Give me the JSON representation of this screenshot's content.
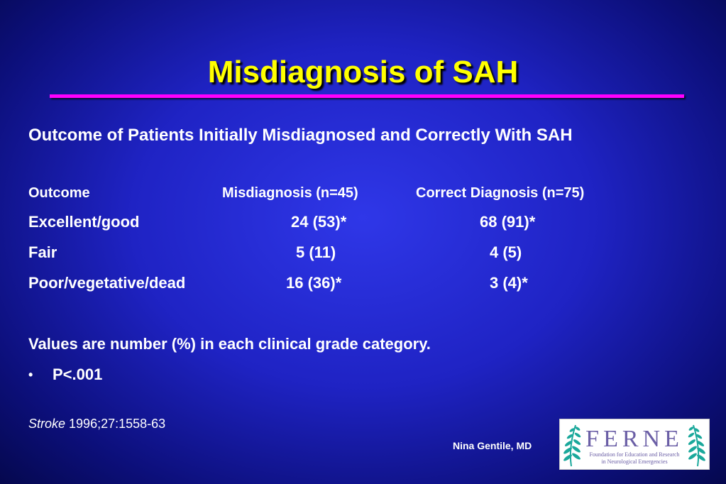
{
  "slide": {
    "title": "Misdiagnosis of SAH",
    "subtitle": "Outcome of Patients Initially Misdiagnosed and Correctly With SAH",
    "table": {
      "headers": [
        "Outcome",
        "Misdiagnosis (n=45)",
        "Correct Diagnosis (n=75)"
      ],
      "rows": [
        {
          "outcome": "Excellent/good",
          "misdiagnosis": "24 (53)*",
          "correct": "68 (91)*"
        },
        {
          "outcome": "Fair",
          "misdiagnosis": "5 (11)",
          "correct": "4 (5)"
        },
        {
          "outcome": "Poor/vegetative/dead",
          "misdiagnosis": "16 (36)*",
          "correct": "3 (4)*"
        }
      ]
    },
    "note": "Values are number (%) in each clinical grade category.",
    "bullet_marker": "•",
    "bullet_text": "P<.001",
    "citation": {
      "journal": "Stroke",
      "ref": " 1996;27:1558-63"
    },
    "author": "Nina Gentile, MD",
    "logo": {
      "letters": "FERNE",
      "line1": "Foundation for Education and Research",
      "line2": "in Neurological Emergencies",
      "letter_color": "#6b5fa6",
      "leaf_color": "#1aa89b"
    }
  },
  "colors": {
    "title": "#ffff00",
    "rule": "#ff00ff",
    "text": "#ffffff",
    "background": "#1f23c4"
  }
}
